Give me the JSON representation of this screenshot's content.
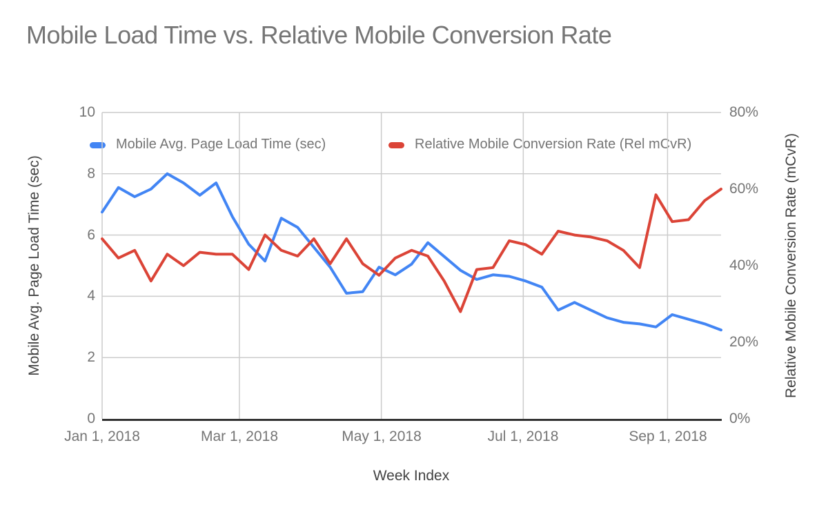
{
  "title": "Mobile Load Time vs. Relative Mobile Conversion Rate",
  "legend": {
    "items": [
      {
        "label": "Mobile Avg. Page Load Time (sec)",
        "color": "#4285F4"
      },
      {
        "label": "Relative Mobile Conversion Rate (Rel mCvR)",
        "color": "#DB4437"
      }
    ]
  },
  "chart_data": {
    "type": "line",
    "title": "Mobile Load Time vs. Relative Mobile Conversion Rate",
    "legend_position": "top",
    "grid": "horizontal-on-left-axis-values, vertical-on-month-ticks",
    "colors": {
      "load_time": "#4285F4",
      "cvr": "#DB4437",
      "gridline": "#cccccc",
      "axis_line": "#333333",
      "tick_label": "#757575",
      "axis_title": "#424242",
      "title": "#757575"
    },
    "axes": {
      "x": {
        "title": "Week Index",
        "total_days": 266,
        "ticks": [
          {
            "label": "Jan 1, 2018",
            "day": 0
          },
          {
            "label": "Mar 1, 2018",
            "day": 59
          },
          {
            "label": "May 1, 2018",
            "day": 120
          },
          {
            "label": "Jul 1, 2018",
            "day": 181
          },
          {
            "label": "Sep 1, 2018",
            "day": 243
          }
        ]
      },
      "left": {
        "title": "Mobile Avg. Page Load Time (sec)",
        "ticks": [
          "0",
          "2",
          "4",
          "6",
          "8",
          "10"
        ]
      },
      "right": {
        "title": "Relative Mobile Conversion Rate (mCvR)",
        "ticks": [
          "0%",
          "20%",
          "40%",
          "60%",
          "80%"
        ]
      }
    },
    "ylim_left": [
      0,
      10
    ],
    "ylim_right": [
      0,
      80
    ],
    "x": [
      "Jan 1, 2018",
      "Jan 8, 2018",
      "Jan 15, 2018",
      "Jan 22, 2018",
      "Jan 29, 2018",
      "Feb 5, 2018",
      "Feb 12, 2018",
      "Feb 19, 2018",
      "Feb 26, 2018",
      "Mar 5, 2018",
      "Mar 12, 2018",
      "Mar 19, 2018",
      "Mar 26, 2018",
      "Apr 2, 2018",
      "Apr 9, 2018",
      "Apr 16, 2018",
      "Apr 23, 2018",
      "Apr 30, 2018",
      "May 7, 2018",
      "May 14, 2018",
      "May 21, 2018",
      "May 28, 2018",
      "Jun 4, 2018",
      "Jun 11, 2018",
      "Jun 18, 2018",
      "Jun 25, 2018",
      "Jul 2, 2018",
      "Jul 9, 2018",
      "Jul 16, 2018",
      "Jul 23, 2018",
      "Jul 30, 2018",
      "Aug 6, 2018",
      "Aug 13, 2018",
      "Aug 20, 2018",
      "Aug 27, 2018",
      "Sep 3, 2018",
      "Sep 10, 2018",
      "Sep 17, 2018",
      "Sep 24, 2018"
    ],
    "series": [
      {
        "name": "Mobile Avg. Page Load Time (sec)",
        "axis": "left",
        "color": "#4285F4",
        "unit": "sec",
        "values": [
          6.75,
          7.55,
          7.25,
          7.5,
          8.0,
          7.7,
          7.3,
          7.7,
          6.6,
          5.7,
          5.15,
          6.55,
          6.25,
          5.6,
          4.95,
          4.1,
          4.15,
          4.95,
          4.7,
          5.05,
          5.75,
          5.3,
          4.85,
          4.55,
          4.7,
          4.65,
          4.5,
          4.3,
          3.55,
          3.8,
          3.55,
          3.3,
          3.15,
          3.1,
          3.0,
          3.4,
          3.25,
          3.1,
          2.9
        ]
      },
      {
        "name": "Relative Mobile Conversion Rate (Rel mCvR)",
        "axis": "right",
        "color": "#DB4437",
        "unit": "%",
        "values": [
          47,
          42,
          44,
          36,
          43,
          40,
          43.5,
          43,
          43,
          39,
          48,
          44,
          42.5,
          47,
          40.5,
          47,
          40.5,
          37.5,
          42,
          44,
          42.5,
          36,
          28,
          39,
          39.5,
          46.5,
          45.5,
          43,
          49,
          48,
          47.5,
          46.5,
          44,
          39.5,
          58.5,
          51.5,
          52,
          57,
          60
        ]
      }
    ]
  }
}
